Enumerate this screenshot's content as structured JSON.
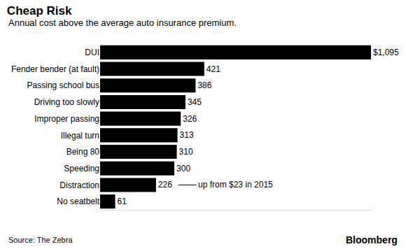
{
  "chart_data": {
    "type": "bar",
    "orientation": "horizontal",
    "title": "Cheap Risk",
    "subtitle": "Annual cost above the average auto insurance premium.",
    "categories": [
      "DUI",
      "Fender bender (at fault)",
      "Passing school bus",
      "Driving too slowly",
      "Improper passing",
      "Illegal turn",
      "Being 80",
      "Speeding",
      "Distraction",
      "No seatbelt"
    ],
    "values": [
      1095,
      421,
      386,
      345,
      326,
      313,
      310,
      300,
      226,
      61
    ],
    "value_labels": [
      "$1,095",
      "421",
      "386",
      "345",
      "326",
      "313",
      "310",
      "300",
      "226",
      "61"
    ],
    "color": "#000000",
    "data_labels": true,
    "tick_labels": "y",
    "grid": false,
    "xlim": [
      0,
      1095
    ],
    "annotations": [
      {
        "text": "up from $23 in 2015",
        "category": "Distraction"
      }
    ],
    "source": "Source: The Zebra",
    "credit": "Bloomberg"
  }
}
